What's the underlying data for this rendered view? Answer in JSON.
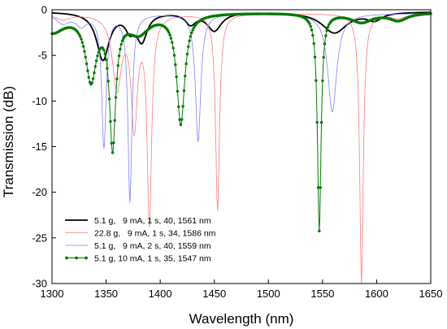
{
  "chart_data": {
    "type": "line",
    "title": "",
    "xlabel": "Wavelength (nm)",
    "ylabel": "Transmission (dB)",
    "xlim": [
      1300,
      1650
    ],
    "ylim": [
      -30,
      0
    ],
    "xticks": [
      1300,
      1350,
      1400,
      1450,
      1500,
      1550,
      1600,
      1650
    ],
    "yticks": [
      0,
      -5,
      -10,
      -15,
      -20,
      -25,
      -30
    ],
    "grid": false,
    "legend_position": "bottom-left",
    "series": [
      {
        "name": "5.1 g,   9 mA, 1 s, 40, 1561 nm",
        "color": "#000000",
        "line_width": 1.8,
        "markers": false,
        "baseline": -0.2,
        "dips": [
          {
            "center": 1347,
            "depth": 5.2,
            "width": 7
          },
          {
            "center": 1372,
            "depth": 1.6,
            "width": 5
          },
          {
            "center": 1383,
            "depth": 3.0,
            "width": 6
          },
          {
            "center": 1428,
            "depth": 1.2,
            "width": 6
          },
          {
            "center": 1450,
            "depth": 2.0,
            "width": 8
          },
          {
            "center": 1561,
            "depth": 2.3,
            "width": 14
          },
          {
            "center": 1598,
            "depth": 0.8,
            "width": 8
          }
        ]
      },
      {
        "name": "22.8 g,   9 mA, 1 s, 34, 1586 nm",
        "color": "#ff7b7b",
        "line_width": 0.8,
        "markers": false,
        "baseline": -0.4,
        "dips": [
          {
            "center": 1310,
            "depth": 0.6,
            "width": 8
          },
          {
            "center": 1360,
            "depth": 8.0,
            "width": 5
          },
          {
            "center": 1376,
            "depth": 12.0,
            "width": 3.5
          },
          {
            "center": 1390,
            "depth": 22.5,
            "width": 2.5
          },
          {
            "center": 1453,
            "depth": 21.5,
            "width": 2.2
          },
          {
            "center": 1586,
            "depth": 29.5,
            "width": 2.0
          },
          {
            "center": 1620,
            "depth": 0.5,
            "width": 8
          }
        ]
      },
      {
        "name": "5.1 g,   9 mA, 2 s, 40, 1559 nm",
        "color": "#8080ff",
        "line_width": 0.8,
        "markers": false,
        "baseline": -0.4,
        "dips": [
          {
            "center": 1310,
            "depth": 1.0,
            "width": 7
          },
          {
            "center": 1327,
            "depth": 1.2,
            "width": 6
          },
          {
            "center": 1348,
            "depth": 14.5,
            "width": 2.5
          },
          {
            "center": 1372,
            "depth": 20.5,
            "width": 2.2
          },
          {
            "center": 1435,
            "depth": 14.0,
            "width": 3.0
          },
          {
            "center": 1559,
            "depth": 10.8,
            "width": 5.0
          }
        ]
      },
      {
        "name": "5.1 g, 10 mA, 1 s, 35, 1547 nm",
        "color": "#007a00",
        "line_width": 1.0,
        "markers": true,
        "baseline": -0.3,
        "dips": [
          {
            "center": 1300,
            "depth": 2.0,
            "width": 14
          },
          {
            "center": 1336,
            "depth": 7.0,
            "width": 6
          },
          {
            "center": 1356,
            "depth": 14.2,
            "width": 3.5
          },
          {
            "center": 1380,
            "depth": 2.0,
            "width": 12
          },
          {
            "center": 1419,
            "depth": 12.0,
            "width": 4.5
          },
          {
            "center": 1547,
            "depth": 23.8,
            "width": 2.0
          },
          {
            "center": 1586,
            "depth": 1.0,
            "width": 12
          },
          {
            "center": 1620,
            "depth": 0.8,
            "width": 10
          }
        ]
      }
    ]
  }
}
